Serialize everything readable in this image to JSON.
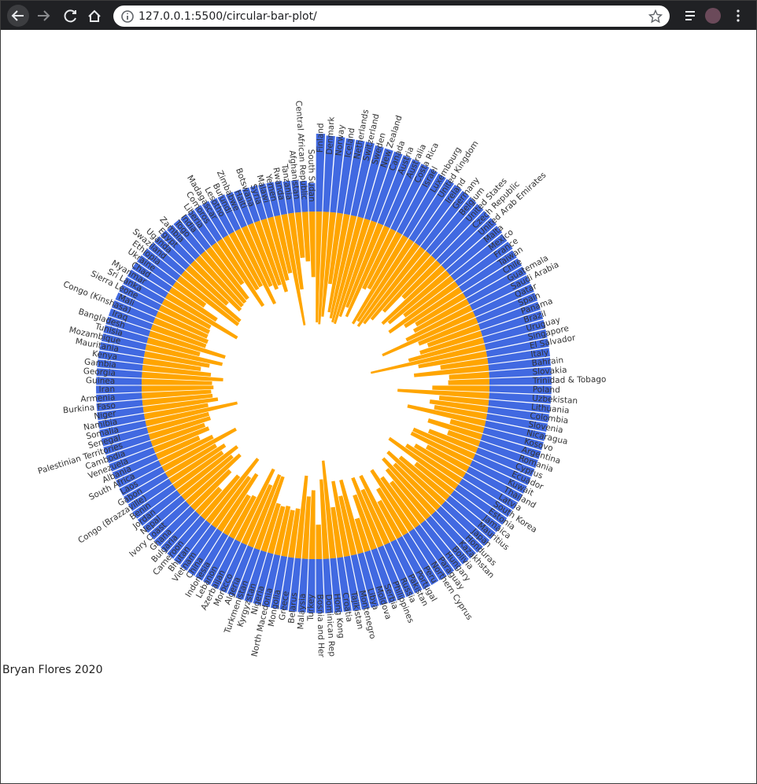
{
  "browser": {
    "url": "127.0.0.1:5500/circular-bar-plot/"
  },
  "author": "Bryan Flores 2020",
  "chart_data": {
    "type": "circular-bar",
    "categories": [
      "Finland",
      "Denmark",
      "Norway",
      "Iceland",
      "Netherlands",
      "Switzerland",
      "Sweden",
      "New Zealand",
      "Canada",
      "Austria",
      "Australia",
      "Costa Rica",
      "Israel",
      "Luxembourg",
      "United Kingdom",
      "Ireland",
      "Germany",
      "Belgium",
      "United States",
      "Czech Republic",
      "United Arab Emirates",
      "Malta",
      "Mexico",
      "France",
      "Taiwan",
      "Chile",
      "Guatemala",
      "Saudi Arabia",
      "Qatar",
      "Spain",
      "Panama",
      "Brazil",
      "Uruguay",
      "Singapore",
      "El Salvador",
      "Italy",
      "Bahrain",
      "Slovakia",
      "Trinidad & Tobago",
      "Poland",
      "Uzbekistan",
      "Lithuania",
      "Colombia",
      "Slovenia",
      "Nicaragua",
      "Kosovo",
      "Argentina",
      "Romania",
      "Cyprus",
      "Ecuador",
      "Kuwait",
      "Thailand",
      "Latvia",
      "South Korea",
      "Estonia",
      "Jamaica",
      "Mauritius",
      "Japan",
      "Honduras",
      "Kazakhstan",
      "Bolivia",
      "Hungary",
      "Paraguay",
      "Northern Cyprus",
      "Peru",
      "Portugal",
      "Pakistan",
      "Russia",
      "Philippines",
      "Serbia",
      "Moldova",
      "Libya",
      "Montenegro",
      "Tajikistan",
      "Croatia",
      "Hong Kong",
      "Dominican Rep",
      "Bosnia and Her",
      "Turkey",
      "Malaysia",
      "Belarus",
      "Greece",
      "Mongolia",
      "North Macedonia",
      "Nigeria",
      "Kyrgyzstan",
      "Turkmenistan",
      "Algeria",
      "Morocco",
      "Azerbaijan",
      "Lebanon",
      "Indonesia",
      "China",
      "Vietnam",
      "Bhutan",
      "Cameroon",
      "Bulgaria",
      "Ghana",
      "Ivory Coast",
      "Nepal",
      "Jordan",
      "Benin",
      "Congo (Brazzaville)",
      "Gabon",
      "Laos",
      "South Africa",
      "Albania",
      "Venezuela",
      "Cambodia",
      "Palestinian Territories",
      "Senegal",
      "Somalia",
      "Namibia",
      "Niger",
      "Burkina Faso",
      "Armenia",
      "Iran",
      "Guinea",
      "Georgia",
      "Gambia",
      "Kenya",
      "Mauritania",
      "Mozambique",
      "Tunisia",
      "Bangladesh",
      "Iraq",
      "Congo (Kinshasa)",
      "Mali",
      "Sierra Leone",
      "Sri Lanka",
      "Myanmar",
      "Chad",
      "Ukraine",
      "Ethiopia",
      "Swaziland",
      "Uganda",
      "Egypt",
      "Zambia",
      "Togo",
      "India",
      "Liberia",
      "Comoros",
      "Madagascar",
      "Lesotho",
      "Burundi",
      "Zimbabwe",
      "Haiti",
      "Botswana",
      "Syria",
      "Malawi",
      "Yemen",
      "Rwanda",
      "Tanzania",
      "Afghanistan",
      "Central African Republic",
      "South Sudan"
    ],
    "series": [
      {
        "color": "#4169e1",
        "values": [
          7.769,
          7.6,
          7.554,
          7.494,
          7.488,
          7.48,
          7.343,
          7.307,
          7.278,
          7.246,
          7.228,
          7.167,
          7.139,
          7.09,
          7.054,
          7.021,
          6.985,
          6.923,
          6.892,
          6.852,
          6.825,
          6.726,
          6.595,
          6.592,
          6.446,
          6.444,
          6.436,
          6.375,
          6.374,
          6.354,
          6.321,
          6.3,
          6.293,
          6.262,
          6.253,
          6.223,
          6.199,
          6.198,
          6.192,
          6.182,
          6.174,
          6.149,
          6.125,
          6.118,
          6.105,
          6.1,
          6.086,
          6.07,
          6.046,
          6.028,
          6.021,
          6.008,
          5.94,
          5.895,
          5.893,
          5.89,
          5.888,
          5.886,
          5.86,
          5.809,
          5.779,
          5.758,
          5.743,
          5.718,
          5.697,
          5.693,
          5.653,
          5.648,
          5.631,
          5.603,
          5.529,
          5.525,
          5.523,
          5.467,
          5.432,
          5.43,
          5.425,
          5.386,
          5.373,
          5.339,
          5.323,
          5.287,
          5.285,
          5.274,
          5.265,
          5.261,
          5.247,
          5.211,
          5.208,
          5.208,
          5.197,
          5.192,
          5.191,
          5.175,
          5.082,
          5.044,
          5.011,
          4.996,
          4.944,
          4.913,
          4.906,
          4.883,
          4.812,
          4.799,
          4.796,
          4.722,
          4.719,
          4.707,
          4.7,
          4.696,
          4.681,
          4.668,
          4.639,
          4.628,
          4.587,
          4.559,
          4.548,
          4.534,
          4.519,
          4.516,
          4.509,
          4.49,
          4.466,
          4.461,
          4.456,
          4.437,
          4.418,
          4.39,
          4.374,
          4.366,
          4.36,
          4.35,
          4.332,
          4.286,
          4.212,
          4.189,
          4.166,
          4.107,
          4.085,
          4.015,
          3.975,
          3.973,
          3.933,
          3.802,
          3.775,
          3.663,
          3.597,
          3.488,
          3.462,
          3.41,
          3.38,
          3.334,
          3.231,
          3.203,
          3.083,
          2.853
        ]
      },
      {
        "color": "#ffa500",
        "axis": "y2",
        "values": [
          0.393,
          0.41,
          0.341,
          0.118,
          0.298,
          0.343,
          0.373,
          0.38,
          0.308,
          0.226,
          0.29,
          0.093,
          0.082,
          0.316,
          0.278,
          0.31,
          0.265,
          0.21,
          0.128,
          0.036,
          0.182,
          0.151,
          0.073,
          0.183,
          0.097,
          0.056,
          0.074,
          0.123,
          0.306,
          0.079,
          0.05,
          0.086,
          0.15,
          0.453,
          0.108,
          0.03,
          0.136,
          0.014,
          0.016,
          0.058,
          0.24,
          0.035,
          0.063,
          0.045,
          0.162,
          0.006,
          0.054,
          0.005,
          0.041,
          0.096,
          0.097,
          0.028,
          0.06,
          0.089,
          0.183,
          0.028,
          0.08,
          0.14,
          0.078,
          0.133,
          0.083,
          0.039,
          0.07,
          0.122,
          0.045,
          0.017,
          0.125,
          0.066,
          0.132,
          0.059,
          0.006,
          0.141,
          0.07,
          0.144,
          0.038,
          0.287,
          0.162,
          0.006,
          0.106,
          0.078,
          0.182,
          0.034,
          0.028,
          0.036,
          0.032,
          0.036,
          0.147,
          0.15,
          0.087,
          0.165,
          0.029,
          0.024,
          0.099,
          0.072,
          0.167,
          0.051,
          0.005,
          0.045,
          0.118,
          0.087,
          0.134,
          0.066,
          0.09,
          0.06,
          0.183,
          0.065,
          0.027,
          0.064,
          0.055,
          0.083,
          0.082,
          0.254,
          0.087,
          0.138,
          0.113,
          0.108,
          0.12,
          0.113,
          0.172,
          0.105,
          0.061,
          0.093,
          0.155,
          0.048,
          0.16,
          0.059,
          0.06,
          0.052,
          0.051,
          0.047,
          0.178,
          0.052,
          0.01,
          0.14,
          0.136,
          0.048,
          0.1,
          0.093,
          0.089,
          0.084,
          0.033,
          0.157,
          0.075,
          0.072,
          0.18,
          0.089,
          0.112,
          0.099,
          0.141,
          0.089,
          0.064,
          0.411,
          0.147,
          0.025,
          0.035,
          0.091
        ]
      }
    ],
    "ylim": [
      0,
      8
    ],
    "y2lim": [
      0,
      0.5
    ]
  }
}
